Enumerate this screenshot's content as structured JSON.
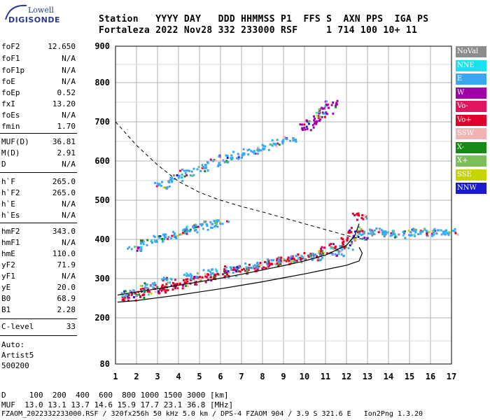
{
  "logo": {
    "line1": "Lowell",
    "line2": "DIGISONDE"
  },
  "header": {
    "row1": "Station   YYYY DAY   DDD HHMMSS P1  FFS S  AXN PPS  IGA PS",
    "row2": "Fortaleza 2022 Nov28 332 233000 RSF     1 714 100 10+ 11"
  },
  "params": [
    {
      "label": "foF2",
      "value": "12.650"
    },
    {
      "label": "foF1",
      "value": "N/A"
    },
    {
      "label": "foF1p",
      "value": "N/A"
    },
    {
      "label": "foE",
      "value": "N/A"
    },
    {
      "label": "foEp",
      "value": "0.52"
    },
    {
      "label": "fxI",
      "value": "13.20"
    },
    {
      "label": "foEs",
      "value": "N/A"
    },
    {
      "label": "fmin",
      "value": "1.70"
    },
    {
      "label": "MUF(D)",
      "value": "36.81"
    },
    {
      "label": "M(D)",
      "value": "2.91"
    },
    {
      "label": "D",
      "value": "N/A"
    },
    {
      "label": "h`F",
      "value": "265.0"
    },
    {
      "label": "h`F2",
      "value": "265.0"
    },
    {
      "label": "h`E",
      "value": "N/A"
    },
    {
      "label": "h`Es",
      "value": "N/A"
    },
    {
      "label": "hmF2",
      "value": "343.0"
    },
    {
      "label": "hmF1",
      "value": "N/A"
    },
    {
      "label": "hmE",
      "value": "110.0"
    },
    {
      "label": "yF2",
      "value": "71.9"
    },
    {
      "label": "yF1",
      "value": "N/A"
    },
    {
      "label": "yE",
      "value": "20.0"
    },
    {
      "label": "B0",
      "value": "68.9"
    },
    {
      "label": "B1",
      "value": "2.28"
    },
    {
      "label": "C-level",
      "value": "33"
    }
  ],
  "auto": {
    "line1": "Auto:",
    "line2": "Artist5",
    "line3": "500200"
  },
  "legend": [
    {
      "label": "NoVal",
      "color": "#8c8c8c"
    },
    {
      "label": "NNE",
      "color": "#19e1f0"
    },
    {
      "label": "E",
      "color": "#3aa8f0"
    },
    {
      "label": "W",
      "color": "#a000a8"
    },
    {
      "label": "Vo-",
      "color": "#e01560"
    },
    {
      "label": "Vo+",
      "color": "#e0002a"
    },
    {
      "label": "SSW",
      "color": "#f0b4b4"
    },
    {
      "label": "X-",
      "color": "#168a16"
    },
    {
      "label": "X+",
      "color": "#7cbe5a"
    },
    {
      "label": "SSE",
      "color": "#c8d400"
    },
    {
      "label": "NNW",
      "color": "#1a1ad0"
    }
  ],
  "chart_data": {
    "type": "scatter",
    "xlabel": "",
    "ylabel": "",
    "x_ticks": [
      "1",
      "2",
      "3",
      "4",
      "5",
      "6",
      "7",
      "8",
      "9",
      "10",
      "11",
      "12",
      "13",
      "14",
      "15",
      "16",
      "17"
    ],
    "y_ticks": [
      "80",
      "200",
      "300",
      "400",
      "500",
      "600",
      "700",
      "800",
      "900"
    ],
    "xlim": [
      1,
      17
    ],
    "ylim": [
      80,
      900
    ],
    "grid": true,
    "series": [
      {
        "name": "Vo+",
        "x": [
          1.6,
          2.0,
          2.5,
          3.0,
          3.5,
          4.0,
          4.5,
          5.0,
          5.5,
          6.0,
          6.5,
          7.0,
          7.5,
          8.0,
          8.5,
          9.0,
          9.5,
          10.0,
          10.5,
          11.0,
          11.5,
          12.0,
          12.4,
          12.6
        ],
        "y": [
          255,
          260,
          268,
          274,
          280,
          286,
          292,
          298,
          305,
          311,
          318,
          324,
          330,
          336,
          342,
          348,
          354,
          360,
          366,
          374,
          385,
          400,
          425,
          460
        ]
      },
      {
        "name": "E",
        "x": [
          1.6,
          2.5,
          3.5,
          4.5,
          5.5,
          6.5,
          7.5,
          8.5,
          9.5,
          10.5,
          11.5,
          12.0
        ],
        "y": [
          265,
          283,
          298,
          310,
          318,
          326,
          335,
          344,
          352,
          358,
          368,
          380
        ]
      },
      {
        "name": "E",
        "x": [
          3.2,
          3.8,
          4.4,
          5.0,
          5.6,
          6.2,
          6.8,
          7.4,
          8.0,
          8.6,
          9.2
        ],
        "y": [
          540,
          558,
          572,
          585,
          598,
          608,
          617,
          627,
          637,
          648,
          660
        ]
      },
      {
        "name": "W",
        "x": [
          10.1,
          10.4,
          10.7,
          11.0,
          11.3
        ],
        "y": [
          690,
          705,
          718,
          732,
          748
        ]
      },
      {
        "name": "E",
        "x": [
          1.9,
          2.5,
          3.0,
          3.5,
          4.0,
          4.5,
          5.0,
          5.5,
          6.0
        ],
        "y": [
          380,
          393,
          403,
          412,
          420,
          428,
          435,
          440,
          445
        ]
      },
      {
        "name": "E",
        "x": [
          12.6,
          13,
          13.5,
          14,
          14.5,
          15,
          15.5,
          16,
          16.5,
          17
        ],
        "y": [
          410,
          420,
          422,
          418,
          415,
          420,
          422,
          418,
          420,
          422
        ]
      }
    ]
  },
  "footer": {
    "line1": "D     100  200  400  600  800 1000 1500 3000 [km]",
    "line2": "MUF  13.0 13.1 13.7 14.6 15.9 17.7 23.1 36.8 [MHz]",
    "line3": "FZAOM_2022332233000.RSF / 320fx256h 50 kHz 5.0 km / DPS-4 FZAOM 904 / 3.9 S 321.6 E   Ion2Png 1.3.20"
  }
}
